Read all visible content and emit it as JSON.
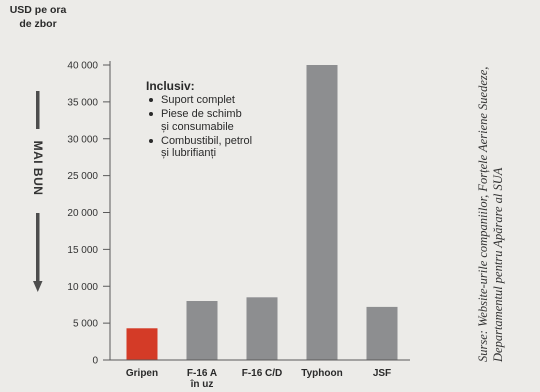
{
  "chart_data": {
    "type": "bar",
    "ylabel": "USD pe ora\nde zbor",
    "categories": [
      "Gripen",
      "F-16 A\nîn uz",
      "F-16 C/D",
      "Typhoon",
      "JSF"
    ],
    "values": [
      4300,
      8000,
      8500,
      40000,
      7200
    ],
    "colors": [
      "#d43b27",
      "#8d8e90",
      "#8d8e90",
      "#8d8e90",
      "#8d8e90"
    ],
    "ylim": [
      0,
      40000
    ],
    "yticks": [
      0,
      5000,
      10000,
      15000,
      20000,
      25000,
      30000,
      35000,
      40000
    ],
    "ytick_labels": [
      "0",
      "5 000",
      "10 000",
      "15 000",
      "20 000",
      "25 000",
      "30 000",
      "35 000",
      "40 000"
    ],
    "grid": false,
    "legend": false,
    "annotation": {
      "title": "Inclusiv:",
      "items": [
        "Suport complet",
        "Piese de schimb\nși consumabile",
        "Combustibil, petrol\nși lubrifianți"
      ]
    },
    "direction_label": "MAI BUN",
    "direction_icon": "arrow-down-icon",
    "source": "Surse: Website-urile companiilor, Forțele Aeriene Suedeze,\nDepartamentul pentru Apărare al SUA"
  }
}
